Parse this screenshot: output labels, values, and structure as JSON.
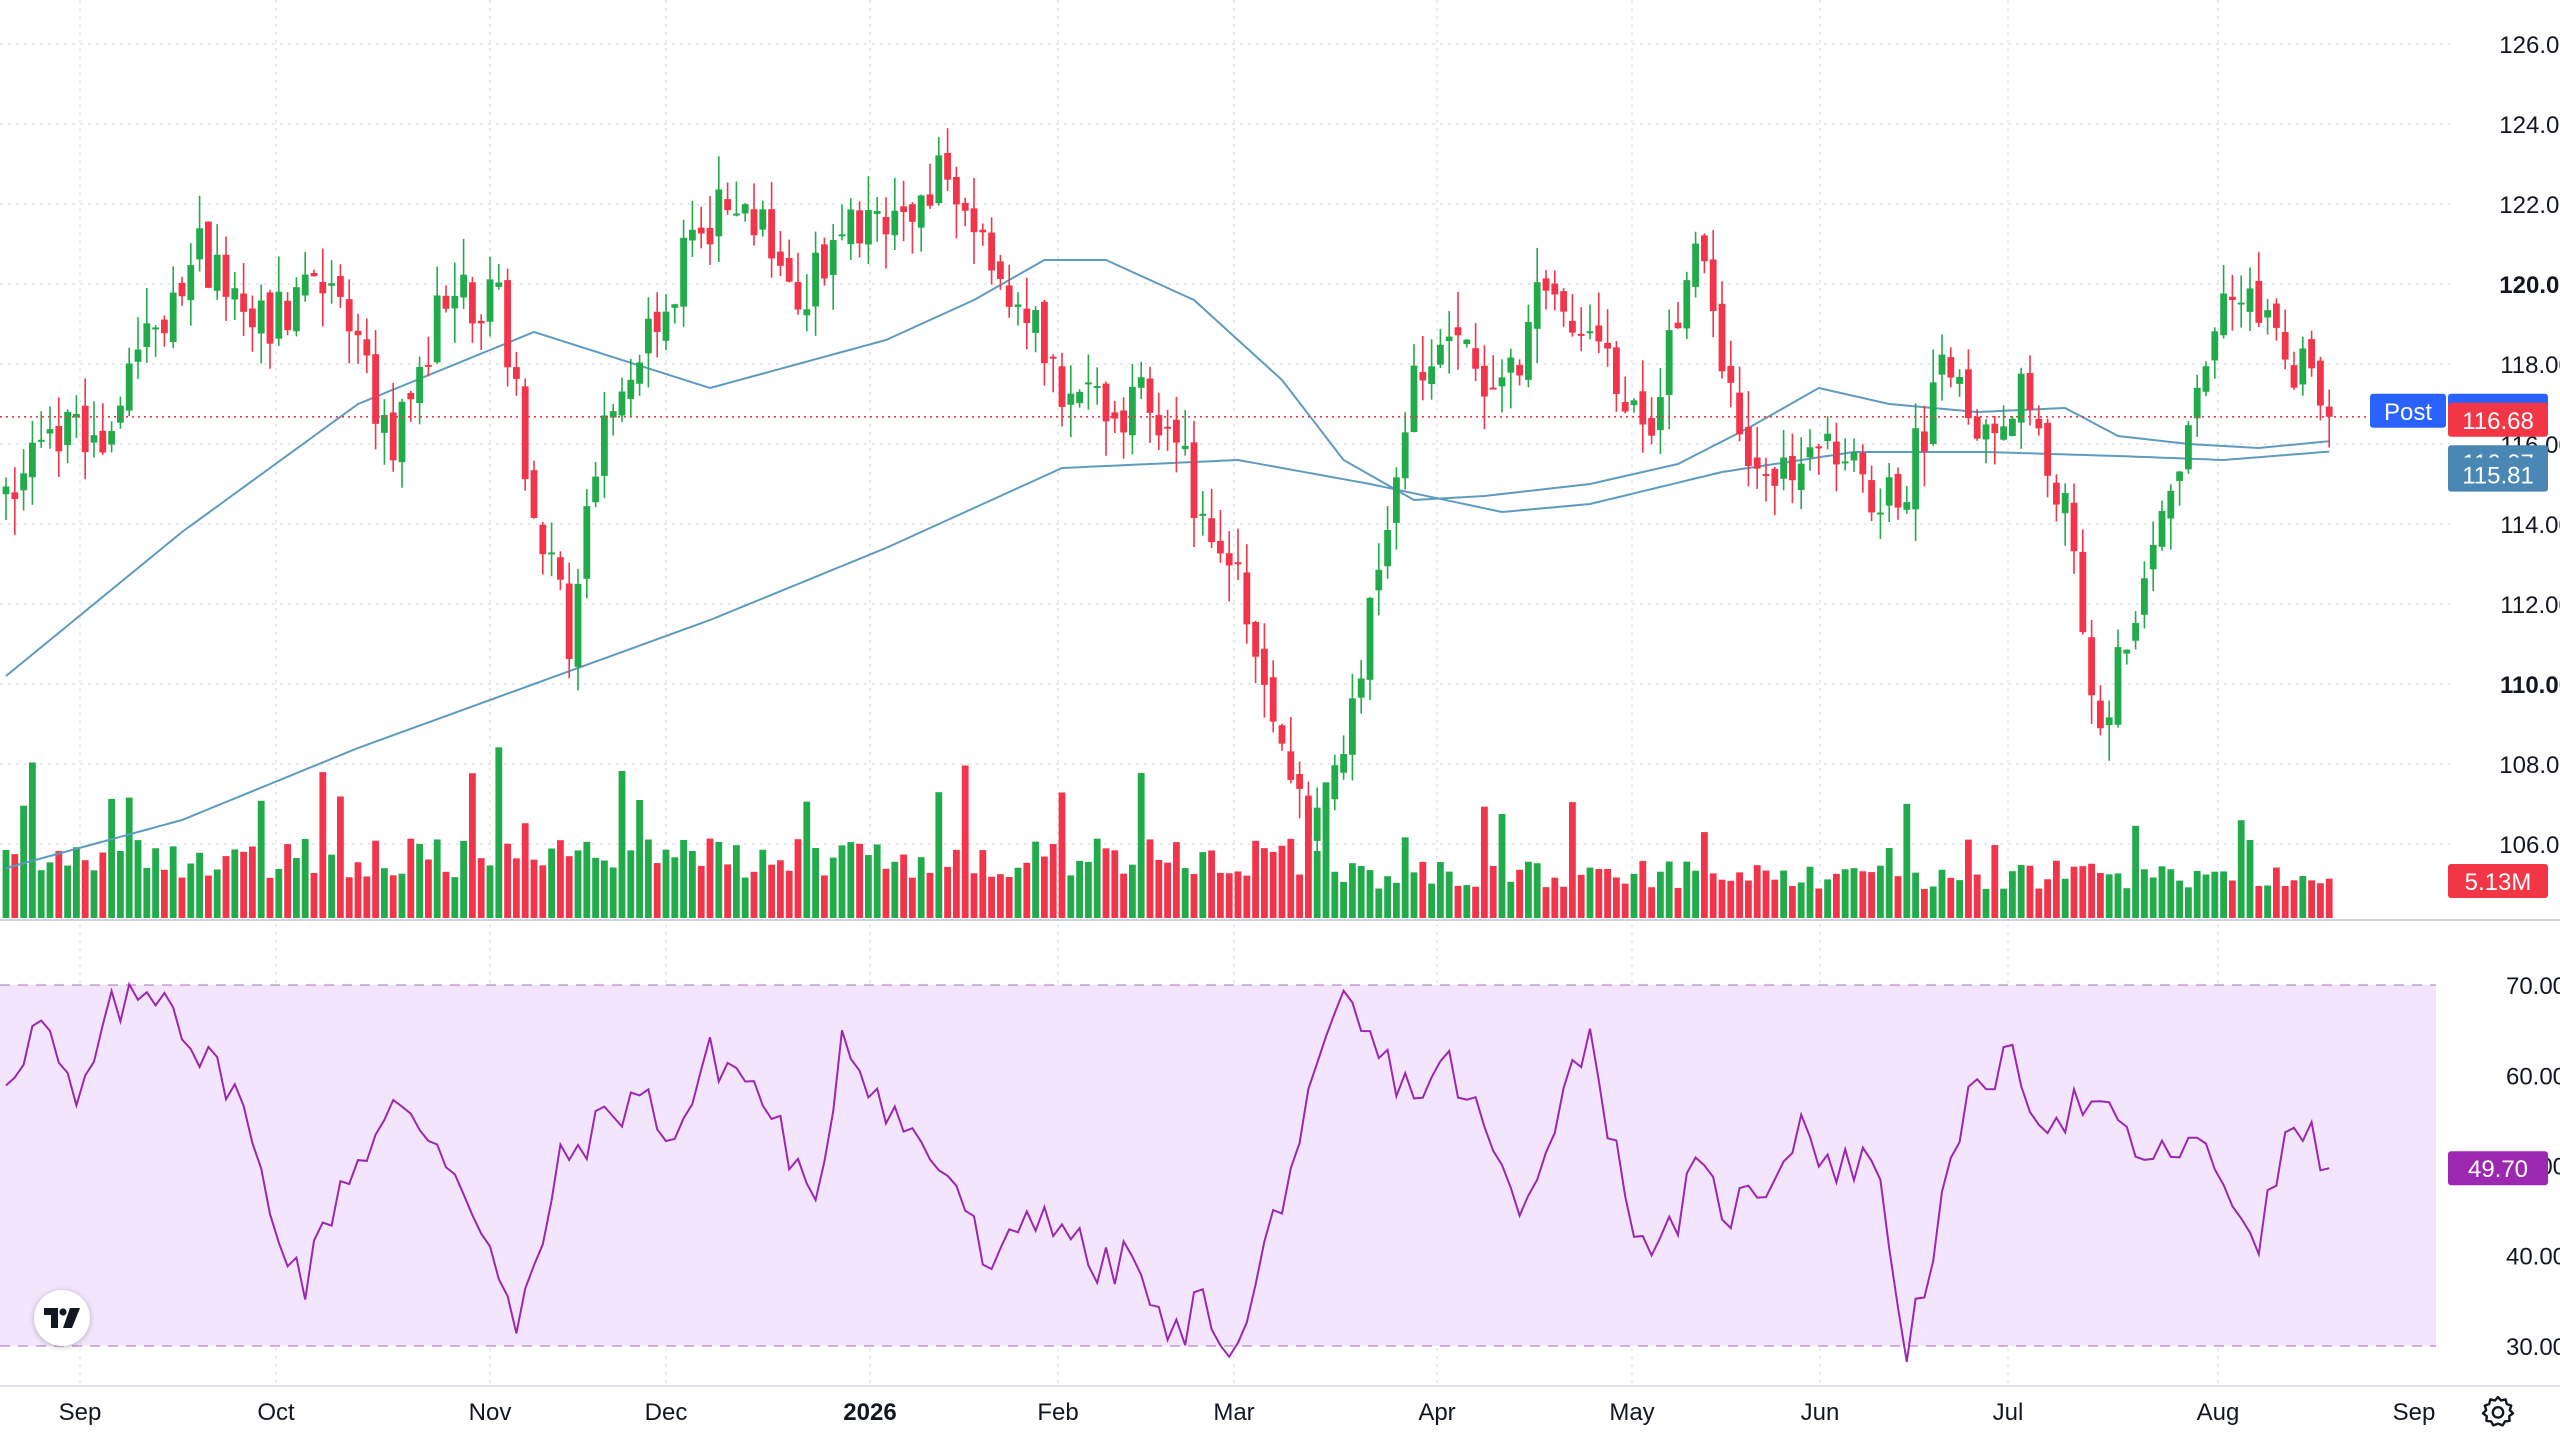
{
  "chart_data": [
    {
      "type": "candlestick",
      "description_source": "price pane",
      "y_ticks": [
        "126.00",
        "124.00",
        "122.00",
        "120.00",
        "118.00",
        "116.00",
        "114.00",
        "112.00",
        "110.00",
        "108.00",
        "106.00"
      ],
      "y_ticks_bold": [
        "120.00",
        "110.00"
      ],
      "ylim": [
        104.6,
        126.6
      ],
      "x_labels": [
        "Sep",
        "Oct",
        "Nov",
        "Dec",
        "2026",
        "Feb",
        "Mar",
        "Apr",
        "May",
        "Jun",
        "Jul",
        "Aug",
        "Sep"
      ],
      "x_label_bold": "2026",
      "close_anchors": [
        {
          "i": 0,
          "v": 114.5
        },
        {
          "i": 5,
          "v": 116.6
        },
        {
          "i": 10,
          "v": 115.8
        },
        {
          "i": 14,
          "v": 118.0
        },
        {
          "i": 22,
          "v": 120.8
        },
        {
          "i": 30,
          "v": 119.2
        },
        {
          "i": 36,
          "v": 120.0
        },
        {
          "i": 44,
          "v": 116.2
        },
        {
          "i": 50,
          "v": 119.6
        },
        {
          "i": 56,
          "v": 119.4
        },
        {
          "i": 60,
          "v": 114.6
        },
        {
          "i": 64,
          "v": 111.2
        },
        {
          "i": 68,
          "v": 116.4
        },
        {
          "i": 73,
          "v": 118.8
        },
        {
          "i": 78,
          "v": 121.0
        },
        {
          "i": 84,
          "v": 122.4
        },
        {
          "i": 90,
          "v": 119.0
        },
        {
          "i": 95,
          "v": 121.8
        },
        {
          "i": 100,
          "v": 121.2
        },
        {
          "i": 106,
          "v": 122.6
        },
        {
          "i": 112,
          "v": 120.6
        },
        {
          "i": 116,
          "v": 119.2
        },
        {
          "i": 120,
          "v": 117.6
        },
        {
          "i": 125,
          "v": 116.6
        },
        {
          "i": 130,
          "v": 117.2
        },
        {
          "i": 135,
          "v": 114.8
        },
        {
          "i": 140,
          "v": 113.0
        },
        {
          "i": 144,
          "v": 108.6
        },
        {
          "i": 148,
          "v": 106.2
        },
        {
          "i": 152,
          "v": 108.8
        },
        {
          "i": 156,
          "v": 112.6
        },
        {
          "i": 160,
          "v": 118.0
        },
        {
          "i": 165,
          "v": 118.6
        },
        {
          "i": 170,
          "v": 117.0
        },
        {
          "i": 175,
          "v": 120.0
        },
        {
          "i": 180,
          "v": 118.8
        },
        {
          "i": 186,
          "v": 116.0
        },
        {
          "i": 192,
          "v": 121.2
        },
        {
          "i": 196,
          "v": 117.0
        },
        {
          "i": 200,
          "v": 114.8
        },
        {
          "i": 205,
          "v": 116.4
        },
        {
          "i": 210,
          "v": 115.2
        },
        {
          "i": 215,
          "v": 114.6
        },
        {
          "i": 220,
          "v": 117.6
        },
        {
          "i": 225,
          "v": 116.2
        },
        {
          "i": 230,
          "v": 117.4
        },
        {
          "i": 234,
          "v": 114.2
        },
        {
          "i": 238,
          "v": 109.0
        },
        {
          "i": 243,
          "v": 112.6
        },
        {
          "i": 248,
          "v": 116.6
        },
        {
          "i": 253,
          "v": 119.8
        },
        {
          "i": 258,
          "v": 118.8
        },
        {
          "i": 264,
          "v": 116.68
        }
      ],
      "ma_fast": [
        {
          "i": 0,
          "v": 110.2
        },
        {
          "i": 20,
          "v": 113.8
        },
        {
          "i": 40,
          "v": 117.0
        },
        {
          "i": 60,
          "v": 118.8
        },
        {
          "i": 80,
          "v": 117.4
        },
        {
          "i": 100,
          "v": 118.6
        },
        {
          "i": 110,
          "v": 119.6
        },
        {
          "i": 118,
          "v": 120.6
        },
        {
          "i": 125,
          "v": 120.6
        },
        {
          "i": 135,
          "v": 119.6
        },
        {
          "i": 145,
          "v": 117.6
        },
        {
          "i": 152,
          "v": 115.6
        },
        {
          "i": 160,
          "v": 114.6
        },
        {
          "i": 168,
          "v": 114.7
        },
        {
          "i": 180,
          "v": 115.0
        },
        {
          "i": 190,
          "v": 115.5
        },
        {
          "i": 198,
          "v": 116.4
        },
        {
          "i": 206,
          "v": 117.4
        },
        {
          "i": 214,
          "v": 117.0
        },
        {
          "i": 224,
          "v": 116.8
        },
        {
          "i": 234,
          "v": 116.9
        },
        {
          "i": 240,
          "v": 116.2
        },
        {
          "i": 248,
          "v": 116.0
        },
        {
          "i": 256,
          "v": 115.9
        },
        {
          "i": 264,
          "v": 116.07
        }
      ],
      "ma_slow": [
        {
          "i": 0,
          "v": 105.4
        },
        {
          "i": 20,
          "v": 106.6
        },
        {
          "i": 40,
          "v": 108.4
        },
        {
          "i": 60,
          "v": 110.0
        },
        {
          "i": 80,
          "v": 111.6
        },
        {
          "i": 100,
          "v": 113.4
        },
        {
          "i": 120,
          "v": 115.4
        },
        {
          "i": 140,
          "v": 115.6
        },
        {
          "i": 155,
          "v": 115.0
        },
        {
          "i": 170,
          "v": 114.3
        },
        {
          "i": 180,
          "v": 114.5
        },
        {
          "i": 195,
          "v": 115.3
        },
        {
          "i": 210,
          "v": 115.8
        },
        {
          "i": 225,
          "v": 115.8
        },
        {
          "i": 240,
          "v": 115.7
        },
        {
          "i": 252,
          "v": 115.6
        },
        {
          "i": 264,
          "v": 115.81
        }
      ],
      "current_close": 116.68,
      "post_price": 116.78,
      "labels": {
        "post": "Post",
        "post_value": "116.78",
        "last_value": "116.68",
        "ma_fast_value": "116.07",
        "ma_slow_value": "115.81",
        "volume_value": "5.13M"
      },
      "bars": 265,
      "colors": {
        "up": "#22ab4a",
        "down": "#f2354a",
        "ma": "#5e9bbf",
        "ma_label": "#4a87b5",
        "post": "#2962ff",
        "last": "#f23645",
        "grid": "#e0e3eb"
      }
    },
    {
      "type": "line",
      "description_source": "RSI pane",
      "y_ticks": [
        "70.00",
        "60.00",
        "50.00",
        "40.00",
        "30.00"
      ],
      "ylim": [
        28,
        73
      ],
      "band": [
        30,
        70
      ],
      "current_value": "49.70",
      "anchors": [
        {
          "i": 0,
          "v": 60
        },
        {
          "i": 4,
          "v": 66
        },
        {
          "i": 8,
          "v": 56
        },
        {
          "i": 12,
          "v": 67
        },
        {
          "i": 18,
          "v": 70
        },
        {
          "i": 22,
          "v": 62
        },
        {
          "i": 26,
          "v": 59
        },
        {
          "i": 30,
          "v": 45
        },
        {
          "i": 34,
          "v": 37
        },
        {
          "i": 38,
          "v": 48
        },
        {
          "i": 44,
          "v": 56
        },
        {
          "i": 49,
          "v": 53
        },
        {
          "i": 54,
          "v": 44
        },
        {
          "i": 58,
          "v": 31
        },
        {
          "i": 63,
          "v": 50
        },
        {
          "i": 68,
          "v": 55
        },
        {
          "i": 72,
          "v": 58
        },
        {
          "i": 76,
          "v": 53
        },
        {
          "i": 80,
          "v": 62
        },
        {
          "i": 84,
          "v": 60
        },
        {
          "i": 88,
          "v": 54
        },
        {
          "i": 92,
          "v": 44
        },
        {
          "i": 95,
          "v": 65
        },
        {
          "i": 99,
          "v": 58
        },
        {
          "i": 104,
          "v": 52
        },
        {
          "i": 108,
          "v": 48
        },
        {
          "i": 112,
          "v": 37
        },
        {
          "i": 116,
          "v": 45
        },
        {
          "i": 120,
          "v": 44
        },
        {
          "i": 124,
          "v": 38
        },
        {
          "i": 128,
          "v": 40
        },
        {
          "i": 132,
          "v": 30
        },
        {
          "i": 136,
          "v": 35
        },
        {
          "i": 140,
          "v": 29
        },
        {
          "i": 144,
          "v": 44
        },
        {
          "i": 148,
          "v": 56
        },
        {
          "i": 152,
          "v": 68
        },
        {
          "i": 156,
          "v": 62
        },
        {
          "i": 160,
          "v": 58
        },
        {
          "i": 164,
          "v": 61
        },
        {
          "i": 168,
          "v": 54
        },
        {
          "i": 172,
          "v": 44
        },
        {
          "i": 176,
          "v": 56
        },
        {
          "i": 180,
          "v": 65
        },
        {
          "i": 184,
          "v": 46
        },
        {
          "i": 188,
          "v": 40
        },
        {
          "i": 192,
          "v": 49
        },
        {
          "i": 196,
          "v": 45
        },
        {
          "i": 200,
          "v": 48
        },
        {
          "i": 204,
          "v": 55
        },
        {
          "i": 208,
          "v": 49
        },
        {
          "i": 212,
          "v": 52
        },
        {
          "i": 216,
          "v": 30
        },
        {
          "i": 220,
          "v": 45
        },
        {
          "i": 224,
          "v": 60
        },
        {
          "i": 228,
          "v": 61
        },
        {
          "i": 232,
          "v": 55
        },
        {
          "i": 236,
          "v": 57
        },
        {
          "i": 240,
          "v": 54
        },
        {
          "i": 244,
          "v": 50
        },
        {
          "i": 248,
          "v": 53
        },
        {
          "i": 252,
          "v": 48
        },
        {
          "i": 256,
          "v": 42
        },
        {
          "i": 260,
          "v": 55
        },
        {
          "i": 264,
          "v": 49.7
        }
      ],
      "colors": {
        "line": "#9c27b0",
        "band": "#f3e5fc",
        "band_border": "#c6a0d6",
        "badge": "#9c27b0"
      }
    }
  ],
  "settings_icon": "gear-icon",
  "logo_icon": "tradingview-logo-icon"
}
